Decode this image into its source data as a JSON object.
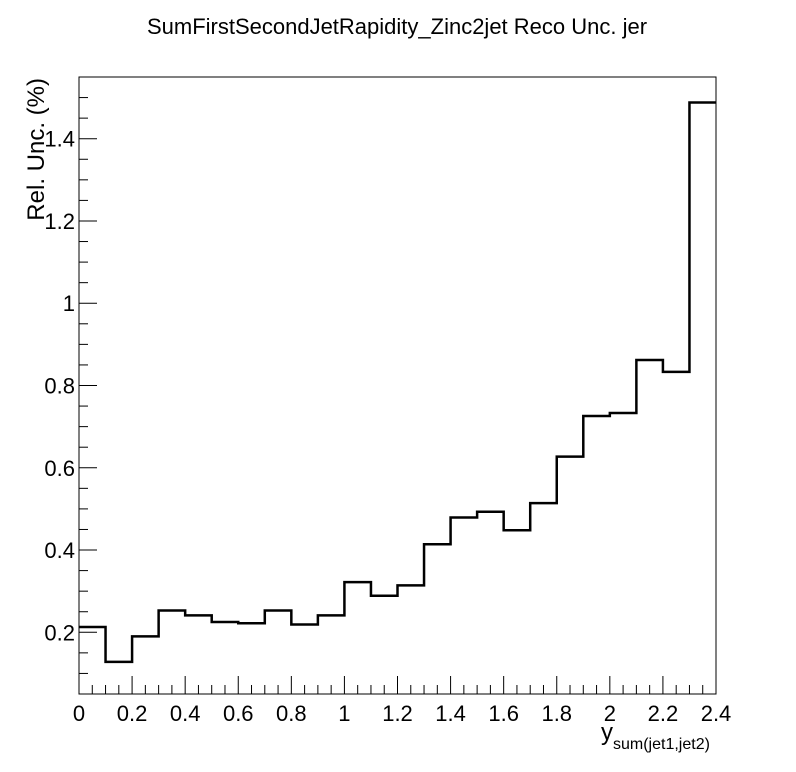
{
  "chart_data": {
    "type": "step",
    "title": "SumFirstSecondJetRapidity_Zinc2jet Reco Unc. jer",
    "xlabel_main": "y",
    "xlabel_sub": "sum(jet1,jet2)",
    "ylabel": "Rel. Unc. (%)",
    "xlim": [
      0,
      2.4
    ],
    "ylim": [
      0.05,
      1.55
    ],
    "grid": false,
    "x_ticks": [
      {
        "v": 0,
        "label": "0"
      },
      {
        "v": 0.2,
        "label": "0.2"
      },
      {
        "v": 0.4,
        "label": "0.4"
      },
      {
        "v": 0.6,
        "label": "0.6"
      },
      {
        "v": 0.8,
        "label": "0.8"
      },
      {
        "v": 1.0,
        "label": "1"
      },
      {
        "v": 1.2,
        "label": "1.2"
      },
      {
        "v": 1.4,
        "label": "1.4"
      },
      {
        "v": 1.6,
        "label": "1.6"
      },
      {
        "v": 1.8,
        "label": "1.8"
      },
      {
        "v": 2.0,
        "label": "2"
      },
      {
        "v": 2.2,
        "label": "2.2"
      },
      {
        "v": 2.4,
        "label": "2.4"
      }
    ],
    "y_ticks": [
      {
        "v": 0.2,
        "label": "0.2"
      },
      {
        "v": 0.4,
        "label": "0.4"
      },
      {
        "v": 0.6,
        "label": "0.6"
      },
      {
        "v": 0.8,
        "label": "0.8"
      },
      {
        "v": 1.0,
        "label": "1"
      },
      {
        "v": 1.2,
        "label": "1.2"
      },
      {
        "v": 1.4,
        "label": "1.4"
      }
    ],
    "bin_edges": [
      0,
      0.1,
      0.2,
      0.3,
      0.4,
      0.5,
      0.6,
      0.7,
      0.8,
      0.9,
      1.0,
      1.1,
      1.2,
      1.3,
      1.4,
      1.5,
      1.6,
      1.7,
      1.8,
      1.9,
      2.0,
      2.1,
      2.2,
      2.3,
      2.4
    ],
    "values": [
      0.213,
      0.128,
      0.19,
      0.253,
      0.241,
      0.225,
      0.222,
      0.253,
      0.219,
      0.241,
      0.322,
      0.289,
      0.314,
      0.414,
      0.479,
      0.493,
      0.448,
      0.514,
      0.627,
      0.726,
      0.733,
      0.862,
      0.833,
      1.488
    ],
    "line_color": "#000000"
  }
}
